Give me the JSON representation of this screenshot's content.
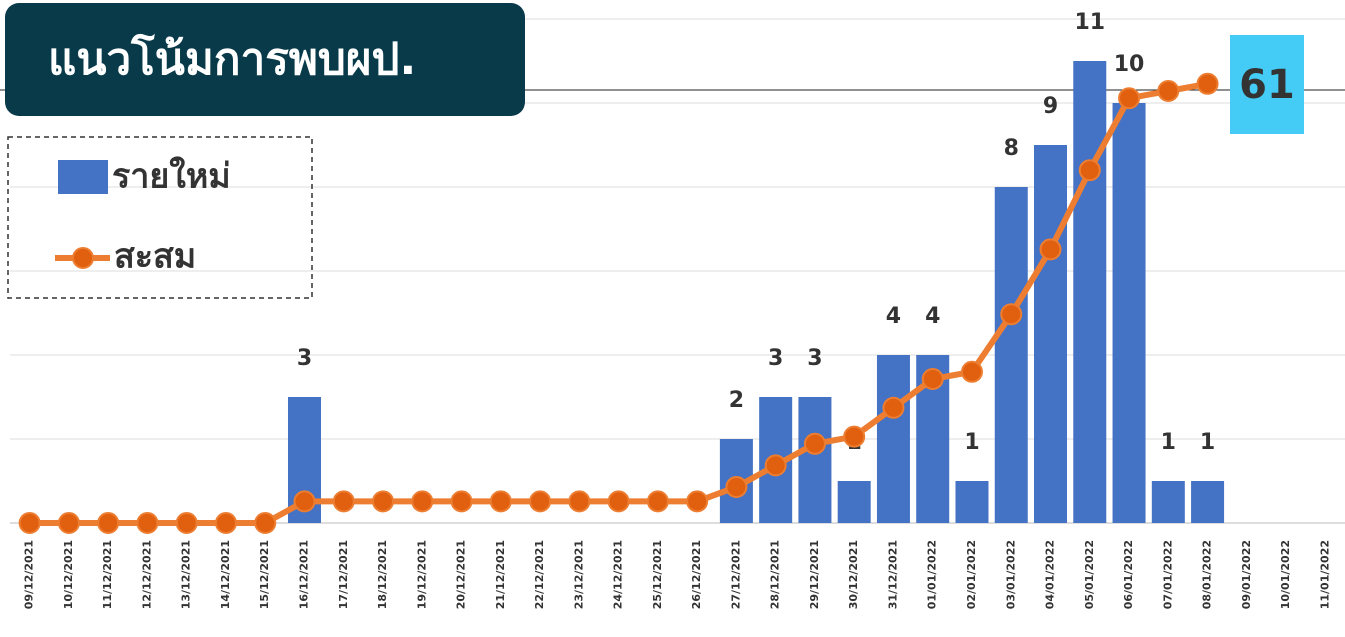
{
  "chart_data": {
    "type": "bar",
    "title": "แนวโน้มการพบผป.",
    "categories": [
      "09/12/2021",
      "10/12/2021",
      "11/12/2021",
      "12/12/2021",
      "13/12/2021",
      "14/12/2021",
      "15/12/2021",
      "16/12/2021",
      "17/12/2021",
      "18/12/2021",
      "19/12/2021",
      "20/12/2021",
      "21/12/2021",
      "22/12/2021",
      "23/12/2021",
      "24/12/2021",
      "25/12/2021",
      "26/12/2021",
      "27/12/2021",
      "28/12/2021",
      "29/12/2021",
      "30/12/2021",
      "31/12/2021",
      "01/01/2022",
      "02/01/2022",
      "03/01/2022",
      "04/01/2022",
      "05/01/2022",
      "06/01/2022",
      "07/01/2022",
      "08/01/2022",
      "09/01/2022",
      "10/01/2022",
      "11/01/2022"
    ],
    "series": [
      {
        "name": "รายใหม่",
        "type": "bar",
        "color": "#4472c4",
        "values": [
          0,
          0,
          0,
          0,
          0,
          0,
          0,
          3,
          0,
          0,
          0,
          0,
          0,
          0,
          0,
          0,
          0,
          0,
          2,
          3,
          3,
          1,
          4,
          4,
          1,
          8,
          9,
          11,
          10,
          1,
          1,
          0,
          0,
          0
        ]
      },
      {
        "name": "สะสม",
        "type": "line",
        "axis": "y2",
        "color": "#ed7d31",
        "values": [
          0,
          0,
          0,
          0,
          0,
          0,
          0,
          3,
          3,
          3,
          3,
          3,
          3,
          3,
          3,
          3,
          3,
          3,
          5,
          8,
          11,
          12,
          16,
          20,
          21,
          29,
          38,
          49,
          59,
          60,
          61,
          null,
          null,
          null
        ]
      }
    ],
    "ylim": [
      0,
      12
    ],
    "yticks": [
      0,
      2,
      4,
      6,
      8,
      10,
      12
    ],
    "y2lim": [
      0,
      70
    ],
    "grid": true,
    "legend": "upper left"
  }
}
